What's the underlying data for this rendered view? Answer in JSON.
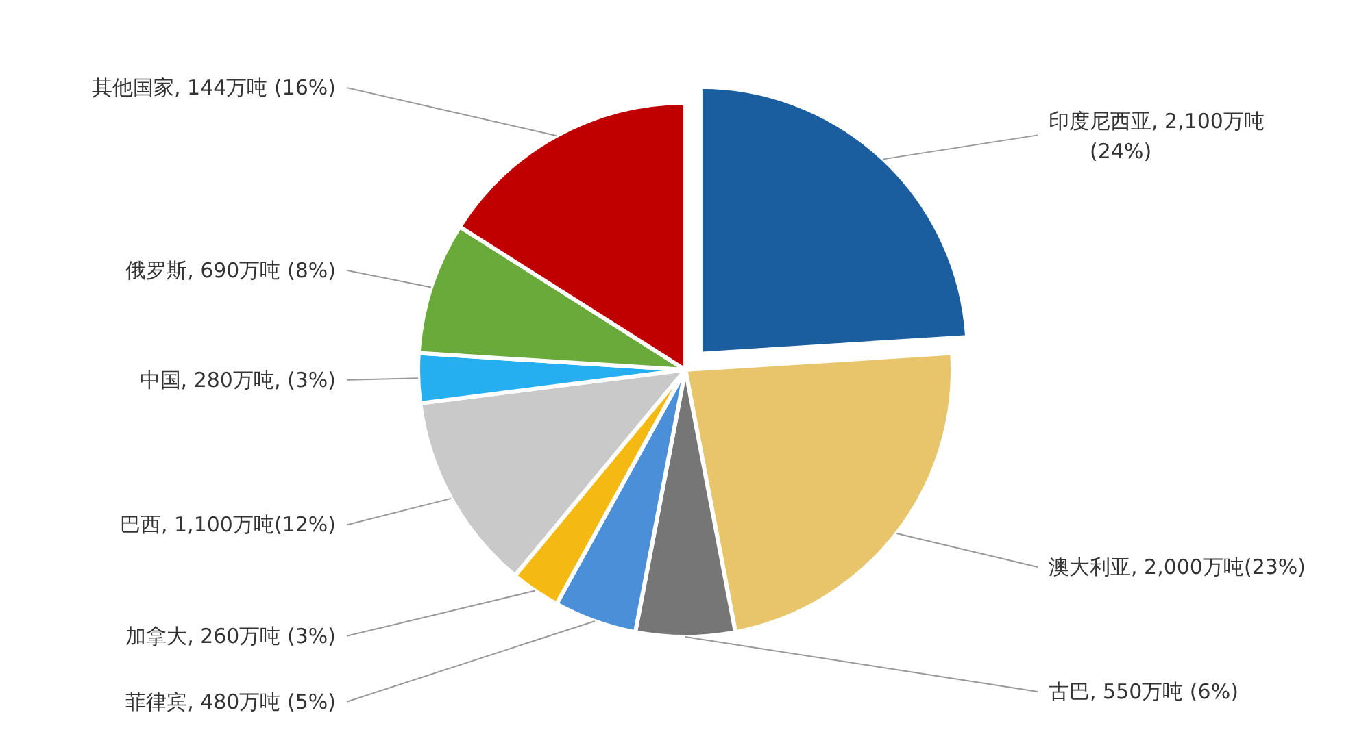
{
  "chart_data": {
    "type": "pie",
    "categories": [
      "印度尼西亚",
      "澳大利亚",
      "古巴",
      "菲律宾",
      "加拿大",
      "巴西",
      "中国",
      "俄罗斯",
      "其他国家"
    ],
    "values": [
      24,
      23,
      6,
      5,
      3,
      12,
      3,
      8,
      16
    ],
    "value_labels": [
      "2,100万吨\n(24%)",
      "2,000万吨(23%)",
      "550万吨 (6%)",
      "480万吨 (5%)",
      "260万吨 (3%)",
      "1,100万吨(12%)",
      "280万吨, (3%)",
      "690万吨 (8%)",
      "144万吨 (16%)"
    ],
    "colors": [
      "#1a5e9f",
      "#e8c46a",
      "#767676",
      "#4a8fd8",
      "#f5b914",
      "#c9c9c9",
      "#26aff0",
      "#6aaa3b",
      "#c00000"
    ],
    "legend": false
  }
}
